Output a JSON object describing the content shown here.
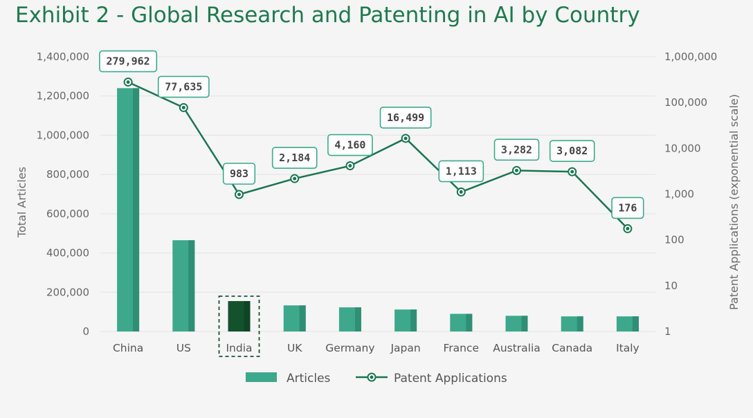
{
  "title": "Exhibit 2 - Global Research and Patenting in AI by Country",
  "colors": {
    "bar": "#3da88c",
    "bar_shade": "#2e8f75",
    "highlight_bar": "#13522d",
    "highlight_bar_shade": "#0f4425",
    "line": "#1a7550",
    "label_border": "#3da88c",
    "grid": "#e3e3e3"
  },
  "chart_data": {
    "type": "bar+line",
    "categories": [
      "China",
      "US",
      "India",
      "UK",
      "Germany",
      "Japan",
      "France",
      "Australia",
      "Canada",
      "Italy"
    ],
    "highlight_category": "India",
    "series": [
      {
        "name": "Articles",
        "type": "bar",
        "axis": "left",
        "values": [
          1240000,
          465000,
          155000,
          133000,
          123000,
          112000,
          90000,
          80000,
          77000,
          77000
        ]
      },
      {
        "name": "Patent Applications",
        "type": "line",
        "axis": "right",
        "values": [
          279962,
          77635,
          983,
          2184,
          4160,
          16499,
          1113,
          3282,
          3082,
          176
        ],
        "labels": [
          "279,962",
          "77,635",
          "983",
          "2,184",
          "4,160",
          "16,499",
          "1,113",
          "3,282",
          "3,082",
          "176"
        ]
      }
    ],
    "ylabel_left": "Total Articles",
    "ylim_left": [
      0,
      1400000
    ],
    "yticks_left": [
      "0",
      "200,000",
      "400,000",
      "600,000",
      "800,000",
      "1,000,000",
      "1,200,000",
      "1,400,000"
    ],
    "ylabel_right": "Patent Applications (exponential scale)",
    "ylim_right": [
      1,
      1000000
    ],
    "yscale_right": "log",
    "yticks_right": [
      "1",
      "10",
      "100",
      "1,000",
      "10,000",
      "100,000",
      "1,000,000"
    ],
    "grid": true,
    "legend": "bottom-center"
  }
}
